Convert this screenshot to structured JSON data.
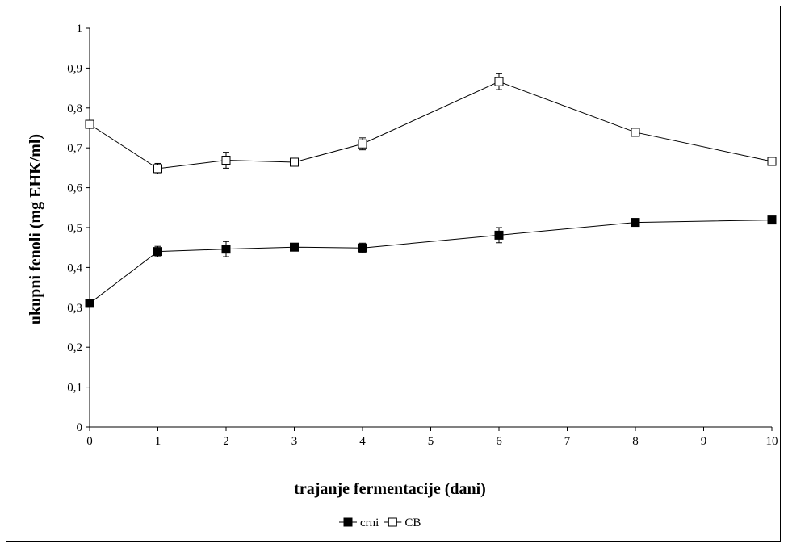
{
  "chart_data": {
    "type": "line",
    "title": "",
    "xlabel": "trajanje fermentacije (dani)",
    "ylabel": "ukupni fenoli (mg EHK/ml)",
    "xlim": [
      0,
      10
    ],
    "ylim": [
      0,
      1
    ],
    "x_ticks": [
      "0",
      "1",
      "2",
      "3",
      "4",
      "5",
      "6",
      "7",
      "8",
      "9",
      "10"
    ],
    "y_ticks": [
      "0",
      "0,1",
      "0,2",
      "0,3",
      "0,4",
      "0,5",
      "0,6",
      "0,7",
      "0,8",
      "0,9",
      "1"
    ],
    "grid": false,
    "legend_position": "bottom",
    "series": [
      {
        "name": "crni",
        "marker": "filled-square",
        "color": "#000000",
        "x": [
          0,
          1,
          2,
          3,
          4,
          6,
          8,
          10
        ],
        "y": [
          0.31,
          0.44,
          0.446,
          0.451,
          0.449,
          0.481,
          0.513,
          0.519
        ],
        "error": [
          0.005,
          0.013,
          0.019,
          0.005,
          0.012,
          0.019,
          0.006,
          0.005
        ]
      },
      {
        "name": "CB",
        "marker": "open-square",
        "color": "#000000",
        "x": [
          0,
          1,
          2,
          3,
          4,
          6,
          8,
          10
        ],
        "y": [
          0.759,
          0.648,
          0.669,
          0.664,
          0.71,
          0.866,
          0.739,
          0.666
        ],
        "error": [
          0.005,
          0.013,
          0.02,
          0.005,
          0.015,
          0.02,
          0.005,
          0.005
        ]
      }
    ]
  }
}
